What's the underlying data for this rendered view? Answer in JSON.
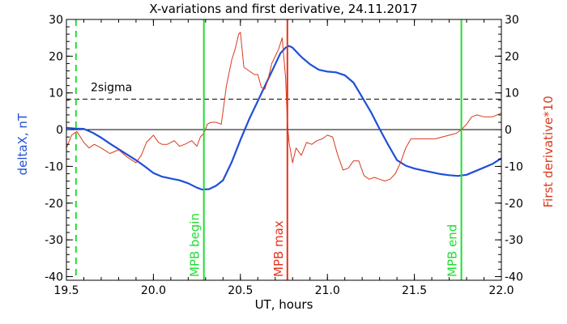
{
  "chart_data": {
    "type": "line",
    "title": "X-variations and first derivative, 24.11.2017",
    "xlabel": "UT, hours",
    "ylabel_left": "deltaX, nT",
    "ylabel_right": "First derivative*10",
    "xlim": [
      19.5,
      22.0
    ],
    "ylim": [
      -41,
      30
    ],
    "x_ticks": [
      19.5,
      20.0,
      20.5,
      21.0,
      21.5,
      22.0
    ],
    "y_ticks": [
      30,
      20,
      10,
      0,
      -10,
      -20,
      -30,
      -40
    ],
    "x_tick_labels": [
      "19.5",
      "20.0",
      "20.5",
      "21.0",
      "21.5",
      "22.0"
    ],
    "y_tick_labels": [
      "30",
      "20",
      "10",
      "0",
      "-10",
      "-20",
      "-30",
      "-40"
    ],
    "threshold": {
      "label": "2sigma",
      "value": 8.3
    },
    "zero_line": 0,
    "colors": {
      "deltaX": "#1f4fd8",
      "derivative": "#d93a1e",
      "mpb": "#22dd33",
      "mpb_max": "#e8321a",
      "axis": "#000000"
    },
    "markers": [
      {
        "label": "MPB begin",
        "x": 20.29,
        "color": "#22dd33",
        "style": "solid"
      },
      {
        "label": "MPB max",
        "x": 20.77,
        "color": "#e8321a",
        "style": "solid"
      },
      {
        "label": "MPB end",
        "x": 21.77,
        "color": "#22dd33",
        "style": "solid"
      },
      {
        "label": "",
        "x": 19.555,
        "color": "#22dd33",
        "style": "dashed"
      }
    ],
    "series": [
      {
        "key": "deltaX",
        "x": [
          19.5,
          19.55,
          19.6,
          19.65,
          19.7,
          19.75,
          19.8,
          19.85,
          19.9,
          19.95,
          20.0,
          20.05,
          20.1,
          20.15,
          20.2,
          20.25,
          20.28,
          20.32,
          20.36,
          20.4,
          20.45,
          20.5,
          20.55,
          20.6,
          20.65,
          20.7,
          20.73,
          20.76,
          20.78,
          20.8,
          20.85,
          20.9,
          20.95,
          21.0,
          21.05,
          21.1,
          21.15,
          21.2,
          21.25,
          21.3,
          21.35,
          21.4,
          21.45,
          21.5,
          21.55,
          21.6,
          21.65,
          21.7,
          21.75,
          21.8,
          21.85,
          21.9,
          21.95,
          22.0
        ],
        "values": [
          0.5,
          0.3,
          0.2,
          -0.8,
          -2.2,
          -3.8,
          -5.3,
          -6.8,
          -8.3,
          -10.0,
          -11.8,
          -12.8,
          -13.3,
          -13.8,
          -14.6,
          -15.8,
          -16.3,
          -16.2,
          -15.3,
          -13.8,
          -8.8,
          -2.8,
          2.8,
          7.8,
          12.8,
          17.8,
          20.8,
          22.3,
          22.8,
          22.3,
          19.8,
          17.8,
          16.3,
          15.8,
          15.6,
          14.8,
          12.8,
          8.8,
          4.8,
          0.2,
          -4.2,
          -8.3,
          -9.8,
          -10.6,
          -11.1,
          -11.6,
          -12.1,
          -12.4,
          -12.6,
          -12.3,
          -11.3,
          -10.3,
          -9.3,
          -7.8
        ]
      },
      {
        "key": "derivative",
        "x": [
          19.5,
          19.53,
          19.56,
          19.6,
          19.63,
          19.66,
          19.7,
          19.75,
          19.8,
          19.85,
          19.9,
          19.93,
          19.96,
          20.0,
          20.03,
          20.05,
          20.08,
          20.12,
          20.15,
          20.18,
          20.22,
          20.25,
          20.27,
          20.29,
          20.31,
          20.33,
          20.36,
          20.39,
          20.42,
          20.45,
          20.47,
          20.49,
          20.5,
          20.52,
          20.55,
          20.58,
          20.6,
          20.62,
          20.64,
          20.66,
          20.68,
          20.7,
          20.72,
          20.74,
          20.76,
          20.77,
          20.78,
          20.8,
          20.82,
          20.85,
          20.88,
          20.91,
          20.94,
          20.97,
          21.0,
          21.03,
          21.06,
          21.09,
          21.12,
          21.15,
          21.18,
          21.21,
          21.24,
          21.27,
          21.3,
          21.33,
          21.36,
          21.39,
          21.42,
          21.45,
          21.48,
          21.52,
          21.55,
          21.58,
          21.62,
          21.66,
          21.7,
          21.74,
          21.77,
          21.8,
          21.83,
          21.86,
          21.9,
          21.95,
          22.0
        ],
        "values": [
          -5.0,
          -1.5,
          -0.5,
          -3.5,
          -5.0,
          -4.0,
          -5.0,
          -6.5,
          -5.5,
          -7.5,
          -9.0,
          -7.0,
          -3.5,
          -1.5,
          -3.5,
          -4.0,
          -4.0,
          -3.0,
          -4.5,
          -4.0,
          -3.0,
          -4.5,
          -2.0,
          -1.0,
          1.5,
          2.0,
          2.0,
          1.5,
          12.0,
          19.0,
          22.0,
          26.0,
          26.5,
          17.0,
          16.0,
          15.0,
          15.0,
          11.5,
          11.0,
          14.0,
          18.0,
          20.0,
          22.0,
          25.0,
          14.0,
          2.0,
          -3.5,
          -9.0,
          -5.0,
          -7.0,
          -3.5,
          -4.0,
          -3.0,
          -2.5,
          -1.5,
          -2.0,
          -7.0,
          -11.0,
          -10.5,
          -8.5,
          -8.5,
          -12.5,
          -13.5,
          -13.0,
          -13.5,
          -14.0,
          -13.5,
          -12.0,
          -9.0,
          -5.0,
          -2.5,
          -2.5,
          -2.5,
          -2.5,
          -2.5,
          -2.0,
          -1.5,
          -1.0,
          0.0,
          1.5,
          3.5,
          4.0,
          3.5,
          3.5,
          4.5
        ]
      }
    ]
  }
}
